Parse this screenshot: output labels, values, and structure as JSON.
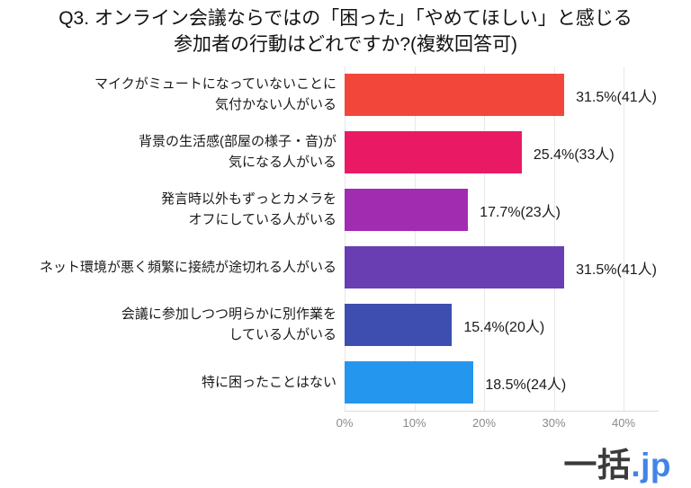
{
  "title": {
    "line1": "Q3. オンライン会議ならではの「困った」「やめてほしい」と感じる",
    "line2": "参加者の行動はどれですか?(複数回答可)"
  },
  "chart_data": {
    "type": "bar",
    "orientation": "horizontal",
    "title": "Q3. オンライン会議ならではの「困った」「やめてほしい」と感じる参加者の行動はどれですか?(複数回答可)",
    "categories": [
      "マイクがミュートになっていないことに気付かない人がいる",
      "背景の生活感(部屋の様子・音)が気になる人がいる",
      "発言時以外もずっとカメラをオフにしている人がいる",
      "ネット環境が悪く頻繁に接続が途切れる人がいる",
      "会議に参加しつつ明らかに別作業をしている人がいる",
      "特に困ったことはない"
    ],
    "category_lines": [
      [
        "マイクがミュートになっていないことに",
        "気付かない人がいる"
      ],
      [
        "背景の生活感(部屋の様子・音)が",
        "気になる人がいる"
      ],
      [
        "発言時以外もずっとカメラを",
        "オフにしている人がいる"
      ],
      [
        "ネット環境が悪く頻繁に接続が途切れる人がいる"
      ],
      [
        "会議に参加しつつ明らかに別作業を",
        "している人がいる"
      ],
      [
        "特に困ったことはない"
      ]
    ],
    "values": [
      31.5,
      25.4,
      17.7,
      31.5,
      15.4,
      18.5
    ],
    "counts": [
      41,
      33,
      23,
      41,
      20,
      24
    ],
    "value_labels": [
      "31.5%(41人)",
      "25.4%(33人)",
      "17.7%(23人)",
      "31.5%(41人)",
      "15.4%(20人)",
      "18.5%(24人)"
    ],
    "bar_colors": [
      "#F3463A",
      "#E91A63",
      "#A12CB0",
      "#693EB3",
      "#3E4EB0",
      "#2496EE"
    ],
    "xlim": [
      0,
      45
    ],
    "x_ticks": [
      {
        "value": 0,
        "label": "0%"
      },
      {
        "value": 10,
        "label": "10%"
      },
      {
        "value": 20,
        "label": "20%"
      },
      {
        "value": 30,
        "label": "30%"
      },
      {
        "value": 40,
        "label": "40%"
      }
    ],
    "grid": true,
    "legend": false,
    "unit_suffix": "人"
  },
  "logo": {
    "text_dark": "一括",
    "text_blue": ".jp",
    "blue_color": "#4184E8"
  }
}
